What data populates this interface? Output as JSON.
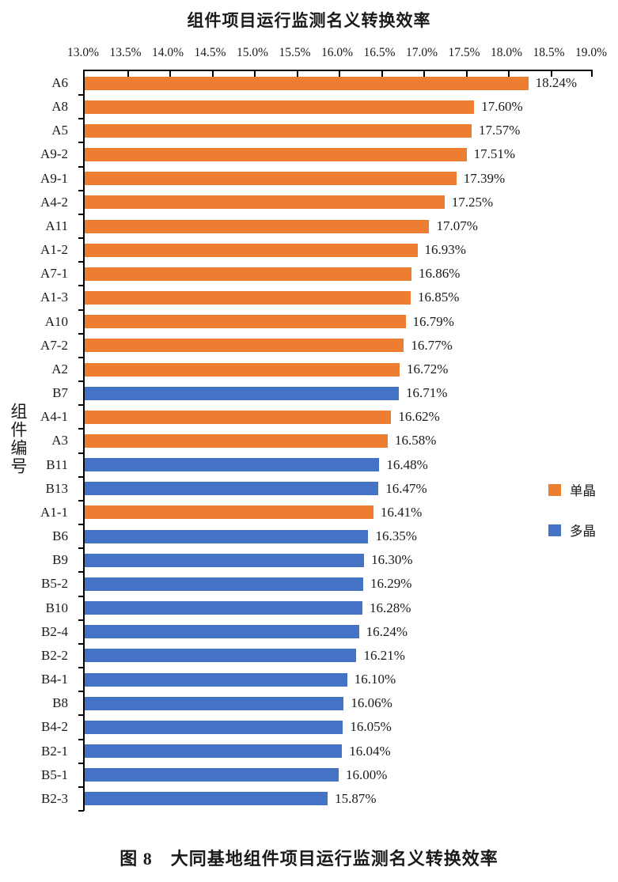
{
  "page": {
    "caption": "图 8　大同基地组件项目运行监测名义转换效率"
  },
  "chart_data": {
    "type": "bar",
    "orientation": "horizontal",
    "title": "组件项目运行监测名义转换效率",
    "ylabel": "组件编号",
    "xlabel": "",
    "xlim": [
      13.0,
      19.0
    ],
    "x_ticks": [
      "13.0%",
      "13.5%",
      "14.0%",
      "14.5%",
      "15.0%",
      "15.5%",
      "16.0%",
      "16.5%",
      "17.0%",
      "17.5%",
      "18.0%",
      "18.5%",
      "19.0%"
    ],
    "grid": false,
    "legend_position": "right",
    "legend": [
      {
        "label": "单晶",
        "color": "#ED7D31"
      },
      {
        "label": "多晶",
        "color": "#4472C4"
      }
    ],
    "series_colors": {
      "单晶": "#ED7D31",
      "多晶": "#4472C4"
    },
    "bars": [
      {
        "category": "A6",
        "value": 18.24,
        "label": "18.24%",
        "series": "单晶"
      },
      {
        "category": "A8",
        "value": 17.6,
        "label": "17.60%",
        "series": "单晶"
      },
      {
        "category": "A5",
        "value": 17.57,
        "label": "17.57%",
        "series": "单晶"
      },
      {
        "category": "A9-2",
        "value": 17.51,
        "label": "17.51%",
        "series": "单晶"
      },
      {
        "category": "A9-1",
        "value": 17.39,
        "label": "17.39%",
        "series": "单晶"
      },
      {
        "category": "A4-2",
        "value": 17.25,
        "label": "17.25%",
        "series": "单晶"
      },
      {
        "category": "A11",
        "value": 17.07,
        "label": "17.07%",
        "series": "单晶"
      },
      {
        "category": "A1-2",
        "value": 16.93,
        "label": "16.93%",
        "series": "单晶"
      },
      {
        "category": "A7-1",
        "value": 16.86,
        "label": "16.86%",
        "series": "单晶"
      },
      {
        "category": "A1-3",
        "value": 16.85,
        "label": "16.85%",
        "series": "单晶"
      },
      {
        "category": "A10",
        "value": 16.79,
        "label": "16.79%",
        "series": "单晶"
      },
      {
        "category": "A7-2",
        "value": 16.77,
        "label": "16.77%",
        "series": "单晶"
      },
      {
        "category": "A2",
        "value": 16.72,
        "label": "16.72%",
        "series": "单晶"
      },
      {
        "category": "B7",
        "value": 16.71,
        "label": "16.71%",
        "series": "多晶"
      },
      {
        "category": "A4-1",
        "value": 16.62,
        "label": "16.62%",
        "series": "单晶"
      },
      {
        "category": "A3",
        "value": 16.58,
        "label": "16.58%",
        "series": "单晶"
      },
      {
        "category": "B11",
        "value": 16.48,
        "label": "16.48%",
        "series": "多晶"
      },
      {
        "category": "B13",
        "value": 16.47,
        "label": "16.47%",
        "series": "多晶"
      },
      {
        "category": "A1-1",
        "value": 16.41,
        "label": "16.41%",
        "series": "单晶"
      },
      {
        "category": "B6",
        "value": 16.35,
        "label": "16.35%",
        "series": "多晶"
      },
      {
        "category": "B9",
        "value": 16.3,
        "label": "16.30%",
        "series": "多晶"
      },
      {
        "category": "B5-2",
        "value": 16.29,
        "label": "16.29%",
        "series": "多晶"
      },
      {
        "category": "B10",
        "value": 16.28,
        "label": "16.28%",
        "series": "多晶"
      },
      {
        "category": "B2-4",
        "value": 16.24,
        "label": "16.24%",
        "series": "多晶"
      },
      {
        "category": "B2-2",
        "value": 16.21,
        "label": "16.21%",
        "series": "多晶"
      },
      {
        "category": "B4-1",
        "value": 16.1,
        "label": "16.10%",
        "series": "多晶"
      },
      {
        "category": "B8",
        "value": 16.06,
        "label": "16.06%",
        "series": "多晶"
      },
      {
        "category": "B4-2",
        "value": 16.05,
        "label": "16.05%",
        "series": "多晶"
      },
      {
        "category": "B2-1",
        "value": 16.04,
        "label": "16.04%",
        "series": "多晶"
      },
      {
        "category": "B5-1",
        "value": 16.0,
        "label": "16.00%",
        "series": "多晶"
      },
      {
        "category": "B2-3",
        "value": 15.87,
        "label": "15.87%",
        "series": "多晶"
      }
    ],
    "caption": "图 8　大同基地组件项目运行监测名义转换效率"
  }
}
